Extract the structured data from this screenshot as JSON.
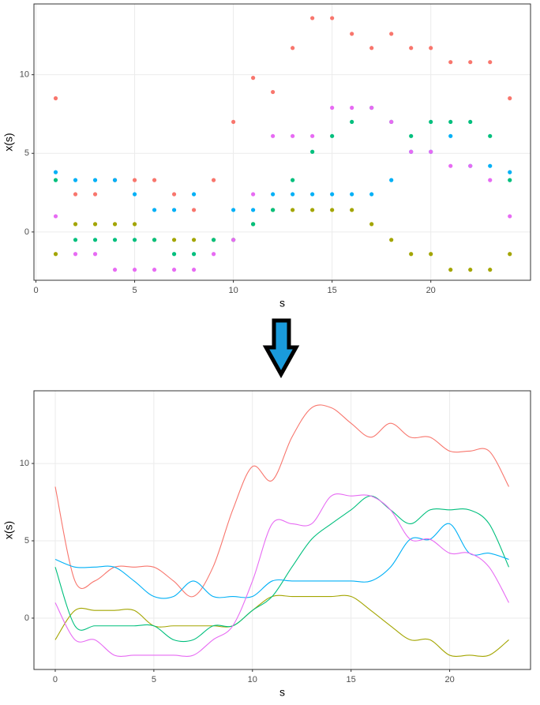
{
  "chart_data": [
    {
      "type": "scatter",
      "xlabel": "s",
      "ylabel": "x(s)",
      "grid": true,
      "x": [
        1,
        2,
        3,
        4,
        5,
        6,
        7,
        8,
        9,
        10,
        11,
        12,
        13,
        14,
        15,
        16,
        17,
        18,
        19,
        20,
        21,
        22,
        23,
        24
      ],
      "xlim": [
        -0.1,
        25.05
      ],
      "ylim": [
        -3.07,
        14.5
      ],
      "xticks": [
        0,
        5,
        10,
        15,
        20
      ],
      "yticks": [
        0,
        5,
        10
      ],
      "series": [
        {
          "color": "#F8766D",
          "values": [
            8.5,
            2.4,
            2.4,
            3.3,
            3.3,
            3.3,
            2.4,
            1.4,
            3.3,
            7.0,
            9.8,
            8.9,
            11.7,
            13.6,
            13.6,
            12.6,
            11.7,
            12.6,
            11.7,
            11.7,
            10.8,
            10.8,
            10.8,
            8.5
          ]
        },
        {
          "color": "#A3A500",
          "values": [
            -1.4,
            0.5,
            0.5,
            0.5,
            0.5,
            -0.5,
            -0.5,
            -0.5,
            -0.5,
            -0.5,
            0.5,
            1.4,
            1.4,
            1.4,
            1.4,
            1.4,
            0.5,
            -0.5,
            -1.4,
            -1.4,
            -2.4,
            -2.4,
            -2.4,
            -1.4
          ]
        },
        {
          "color": "#00BF7D",
          "values": [
            3.3,
            -0.5,
            -0.5,
            -0.5,
            -0.5,
            -0.5,
            -1.4,
            -1.4,
            -0.5,
            -0.5,
            0.5,
            1.4,
            3.3,
            5.1,
            6.1,
            7.0,
            7.9,
            7.0,
            6.1,
            7.0,
            7.0,
            7.0,
            6.1,
            3.3
          ]
        },
        {
          "color": "#00B0F6",
          "values": [
            3.8,
            3.3,
            3.3,
            3.3,
            2.4,
            1.4,
            1.4,
            2.4,
            null,
            1.4,
            1.4,
            2.4,
            2.4,
            2.4,
            2.4,
            2.4,
            2.4,
            3.3,
            5.1,
            5.1,
            6.1,
            4.2,
            4.2,
            3.8
          ]
        },
        {
          "color": "#E76BF3",
          "values": [
            1.0,
            -1.4,
            -1.4,
            -2.4,
            -2.4,
            -2.4,
            -2.4,
            -2.4,
            -1.4,
            -0.5,
            2.4,
            6.1,
            6.1,
            6.1,
            7.9,
            7.9,
            7.9,
            7.0,
            5.1,
            5.1,
            4.2,
            4.2,
            3.3,
            1.0
          ]
        }
      ]
    },
    {
      "type": "line",
      "xlabel": "s",
      "ylabel": "x(s)",
      "grid": true,
      "x": [
        0,
        1,
        2,
        3,
        4,
        5,
        6,
        7,
        8,
        9,
        10,
        11,
        12,
        13,
        14,
        15,
        16,
        17,
        18,
        19,
        20,
        21,
        22,
        23
      ],
      "xlim": [
        -1.08,
        24.1
      ],
      "ylim": [
        -3.32,
        14.7
      ],
      "xticks": [
        0,
        5,
        10,
        15,
        20
      ],
      "yticks": [
        0,
        5,
        10
      ],
      "series": [
        {
          "color": "#F8766D",
          "values": [
            8.5,
            2.4,
            2.4,
            3.3,
            3.3,
            3.3,
            2.4,
            1.4,
            3.3,
            7.0,
            9.8,
            8.9,
            11.7,
            13.6,
            13.6,
            12.6,
            11.7,
            12.6,
            11.7,
            11.7,
            10.8,
            10.8,
            10.8,
            8.5
          ]
        },
        {
          "color": "#A3A500",
          "values": [
            -1.4,
            0.5,
            0.5,
            0.5,
            0.5,
            -0.5,
            -0.5,
            -0.5,
            -0.5,
            -0.5,
            0.5,
            1.4,
            1.4,
            1.4,
            1.4,
            1.4,
            0.5,
            -0.5,
            -1.4,
            -1.4,
            -2.4,
            -2.4,
            -2.4,
            -1.4
          ]
        },
        {
          "color": "#00BF7D",
          "values": [
            3.3,
            -0.5,
            -0.5,
            -0.5,
            -0.5,
            -0.5,
            -1.4,
            -1.4,
            -0.5,
            -0.5,
            0.5,
            1.4,
            3.3,
            5.1,
            6.1,
            7.0,
            7.9,
            7.0,
            6.1,
            7.0,
            7.0,
            7.0,
            6.1,
            3.3
          ]
        },
        {
          "color": "#00B0F6",
          "values": [
            3.8,
            3.3,
            3.3,
            3.3,
            2.4,
            1.4,
            1.4,
            2.4,
            1.4,
            1.4,
            1.4,
            2.4,
            2.4,
            2.4,
            2.4,
            2.4,
            2.4,
            3.3,
            5.1,
            5.1,
            6.1,
            4.2,
            4.2,
            3.8
          ]
        },
        {
          "color": "#E76BF3",
          "values": [
            1.0,
            -1.4,
            -1.4,
            -2.4,
            -2.4,
            -2.4,
            -2.4,
            -2.4,
            -1.4,
            -0.5,
            2.4,
            6.1,
            6.1,
            6.1,
            7.9,
            7.9,
            7.9,
            7.0,
            5.1,
            5.1,
            4.2,
            4.2,
            3.3,
            1.0
          ]
        }
      ]
    }
  ]
}
